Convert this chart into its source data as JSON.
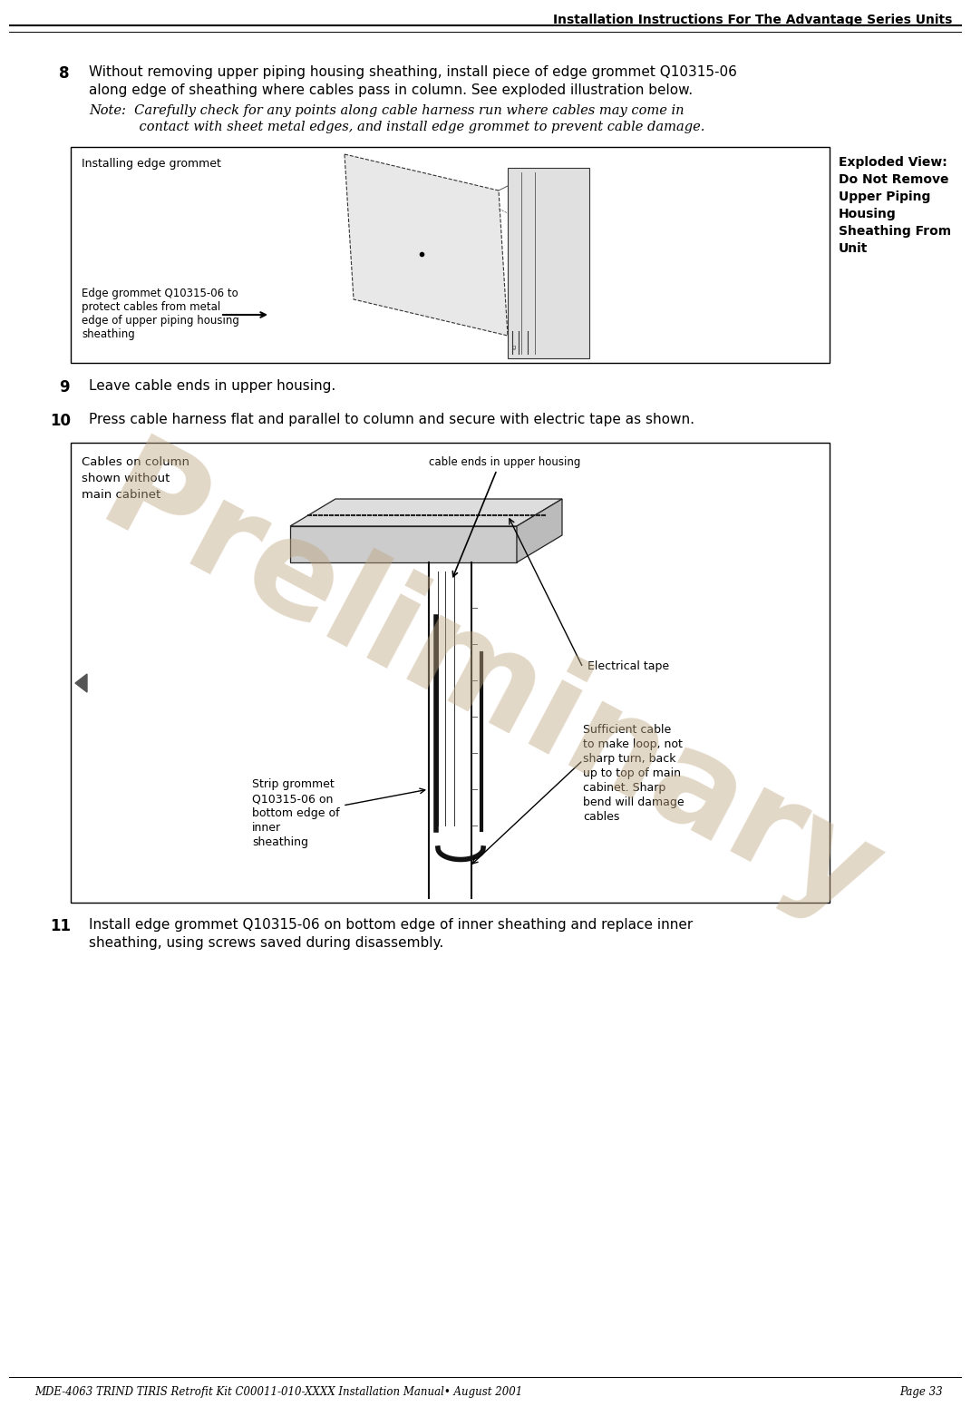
{
  "header_title": "Installation Instructions For The Advantage Series Units",
  "footer_left": "MDE-4063 TRIND TIRIS Retrofit Kit C00011-010-XXXX Installation Manual• August 2001",
  "footer_right": "Page 33",
  "step8_number": "8",
  "step8_text_line1": "Without removing upper piping housing sheathing, install piece of edge grommet Q10315-06",
  "step8_text_line2": "along edge of sheathing where cables pass in column. See exploded illustration below.",
  "step8_note_line1": "Note:  Carefully check for any points along cable harness run where cables may come in",
  "step8_note_line2": "            contact with sheet metal edges, and install edge grommet to prevent cable damage.",
  "step9_number": "9",
  "step9_text": "Leave cable ends in upper housing.",
  "step10_number": "10",
  "step10_text": "Press cable harness flat and parallel to column and secure with electric tape as shown.",
  "step11_number": "11",
  "step11_text_line1": "Install edge grommet Q10315-06 on bottom edge of inner sheathing and replace inner",
  "step11_text_line2": "sheathing, using screws saved during disassembly.",
  "box1_label_tl": "Installing edge grommet",
  "box1_label_right_line1": "Exploded View:",
  "box1_label_right_line2": "Do Not Remove",
  "box1_label_right_line3": "Upper Piping",
  "box1_label_right_line4": "Housing",
  "box1_label_right_line5": "Sheathing From",
  "box1_label_right_line6": "Unit",
  "box1_arrow_label_line1": "Edge grommet Q10315-06 to",
  "box1_arrow_label_line2": "protect cables from metal",
  "box1_arrow_label_line3": "edge of upper piping housing",
  "box1_arrow_label_line4": "sheathing",
  "box2_label_tl_line1": "Cables on column",
  "box2_label_tl_line2": "shown without",
  "box2_label_tl_line3": "main cabinet",
  "box2_top_label": "cable ends in upper housing",
  "box2_electrical_tape": "Electrical tape",
  "box2_strip_grommet_line1": "Strip grommet",
  "box2_strip_grommet_line2": "Q10315-06 on",
  "box2_strip_grommet_line3": "bottom edge of",
  "box2_strip_grommet_line4": "inner",
  "box2_strip_grommet_line5": "sheathing",
  "box2_sufficient_line1": "Sufficient cable",
  "box2_sufficient_line2": "to make loop, not",
  "box2_sufficient_line3": "sharp turn, back",
  "box2_sufficient_line4": "up to top of main",
  "box2_sufficient_line5": "cabinet. Sharp",
  "box2_sufficient_line6": "bend will damage",
  "box2_sufficient_line7": "cables",
  "preliminary_text": "Preliminary",
  "preliminary_color": "#c0a882",
  "bg_color": "#ffffff",
  "text_color": "#000000",
  "box_border_color": "#000000",
  "header_line_color": "#000000",
  "footer_line_color": "#000000"
}
